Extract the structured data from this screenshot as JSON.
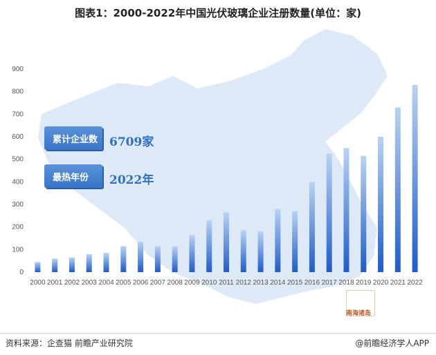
{
  "title": "图表1：2000-2022年中国光伏玻璃企业注册数量(单位：家)",
  "annotations": [
    {
      "label": "累计企业数",
      "value": "6709家"
    },
    {
      "label": "最热年份",
      "value": "2022年"
    }
  ],
  "map_label": "南海诸岛",
  "source": "资料来源：企查猫 前瞻产业研究院",
  "brand": "@前瞻经济学人APP",
  "colors": {
    "bar_top": "#b9d3f1",
    "bar_bottom": "#1f5cc8",
    "accent": "#2f6fc6"
  },
  "chart_data": {
    "type": "bar",
    "title": "图表1：2000-2022年中国光伏玻璃企业注册数量(单位：家)",
    "categories": [
      "2000",
      "2001",
      "2002",
      "2003",
      "2004",
      "2005",
      "2006",
      "2007",
      "2008",
      "2009",
      "2010",
      "2011",
      "2012",
      "2013",
      "2014",
      "2015",
      "2016",
      "2017",
      "2018",
      "2019",
      "2020",
      "2021",
      "2022"
    ],
    "values": [
      45,
      60,
      65,
      80,
      85,
      115,
      135,
      115,
      115,
      165,
      230,
      265,
      185,
      180,
      280,
      270,
      400,
      525,
      550,
      515,
      600,
      730,
      830
    ],
    "yticks": [
      0,
      100,
      200,
      300,
      400,
      500,
      600,
      700,
      800,
      900
    ],
    "ylim": [
      0,
      900
    ],
    "grid": false,
    "legend": "none"
  }
}
